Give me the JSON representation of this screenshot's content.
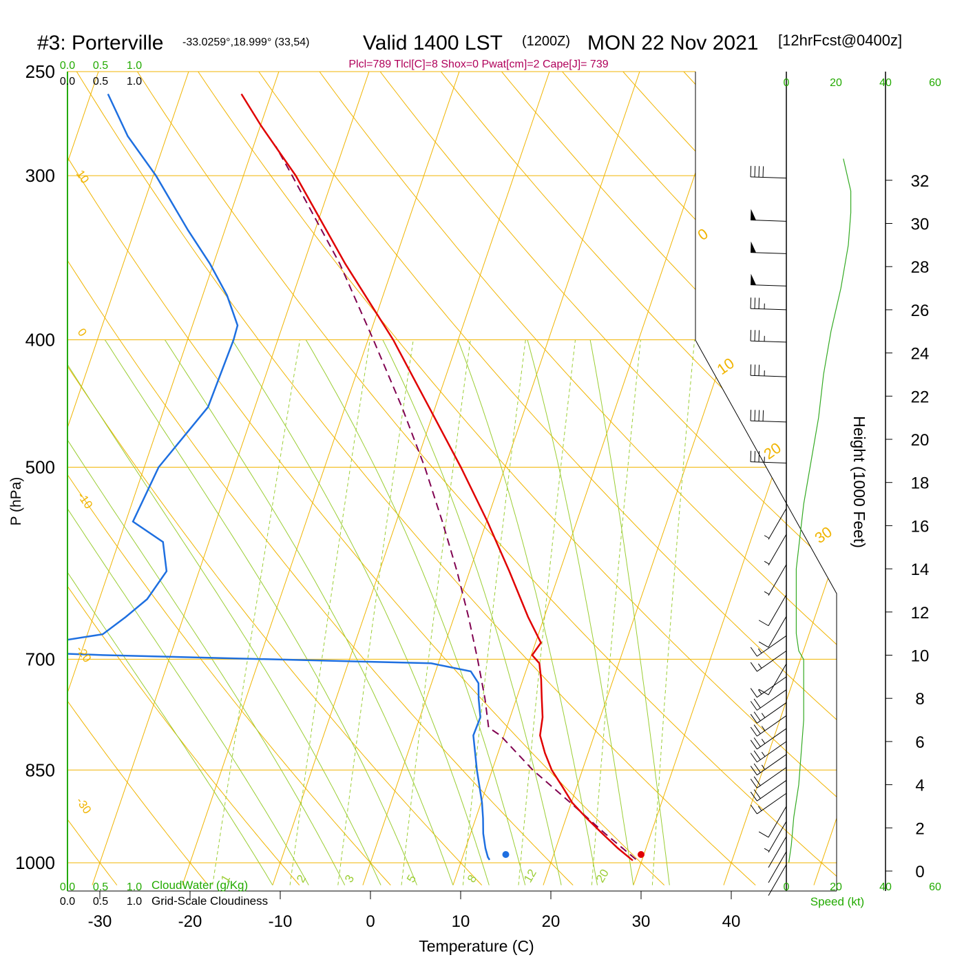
{
  "header": {
    "station": "#3: Porterville",
    "coords": "-33.0259°,18.999° (33,54)",
    "valid": "Valid 1400 LST",
    "utc": "(1200Z)",
    "date": "MON 22 Nov 2021",
    "forecast": "[12hrFcst@0400z]"
  },
  "indices": "Plcl=789 Tlcl[C]=8 Shox=0 Pwat[cm]=2 Cape[J]= 739",
  "colors": {
    "isotherm": "#f0b400",
    "dry_adiabat": "#f0b400",
    "moist_adiabat": "#9acd32",
    "mixing_ratio": "#9acd32",
    "temperature": "#e00000",
    "dewpoint": "#1e6fe0",
    "parcel": "#800050",
    "index_text": "#b0005a",
    "green_text": "#22aa00",
    "height_curve": "#33aa22",
    "wind": "#000000"
  },
  "chart_data": {
    "type": "skew-t sounding",
    "xlabel": "Temperature (C)",
    "ylabel": "P (hPa)",
    "right_axis_label": "Height (1000 Feet)",
    "xlim": [
      -34,
      52
    ],
    "pressure_range": [
      1035,
      250
    ],
    "pressure_ticks": [
      "250",
      "300",
      "400",
      "500",
      "700",
      "850",
      "1000"
    ],
    "temperature_ticks": [
      "-30",
      "-20",
      "-10",
      "0",
      "10",
      "20",
      "30",
      "40"
    ],
    "height_ticks": [
      "0",
      "2",
      "4",
      "6",
      "8",
      "10",
      "12",
      "14",
      "16",
      "18",
      "20",
      "22",
      "24",
      "26",
      "28",
      "30",
      "32"
    ],
    "cloud_ticks": [
      "0.0",
      "0.5",
      "1.0"
    ],
    "cloudwater_label": "CloudWater (g/Kg)",
    "cloudiness_label": "Grid-Scale Cloudiness",
    "speed_ticks": [
      "0",
      "20",
      "40",
      "60"
    ],
    "speed_label": "Speed (kt)",
    "dry_adiabat_labels": [
      "10",
      "0",
      "-10",
      "-20",
      "-30"
    ],
    "moist_adiabat_labels": [
      "0",
      "10",
      "20",
      "30"
    ],
    "mixing_ratio_labels": [
      "1",
      "2",
      "3",
      "5",
      "8",
      "12",
      "20"
    ],
    "temperature_profile": [
      {
        "p": 996,
        "t": 29.0
      },
      {
        "p": 990,
        "t": 28.4
      },
      {
        "p": 975,
        "t": 26.9
      },
      {
        "p": 950,
        "t": 24.6
      },
      {
        "p": 925,
        "t": 22.3
      },
      {
        "p": 900,
        "t": 20.1
      },
      {
        "p": 875,
        "t": 18.4
      },
      {
        "p": 850,
        "t": 16.6
      },
      {
        "p": 825,
        "t": 15.2
      },
      {
        "p": 800,
        "t": 14.0
      },
      {
        "p": 775,
        "t": 13.6
      },
      {
        "p": 750,
        "t": 12.8
      },
      {
        "p": 725,
        "t": 12.0
      },
      {
        "p": 705,
        "t": 11.2
      },
      {
        "p": 695,
        "t": 10.1
      },
      {
        "p": 680,
        "t": 10.6
      },
      {
        "p": 650,
        "t": 8.2
      },
      {
        "p": 600,
        "t": 4.4
      },
      {
        "p": 550,
        "t": 0.1
      },
      {
        "p": 500,
        "t": -4.9
      },
      {
        "p": 450,
        "t": -10.7
      },
      {
        "p": 400,
        "t": -17.2
      },
      {
        "p": 350,
        "t": -25.4
      },
      {
        "p": 300,
        "t": -34.2
      },
      {
        "p": 275,
        "t": -39.9
      },
      {
        "p": 260,
        "t": -43.3
      }
    ],
    "dewpoint_profile": [
      {
        "p": 995,
        "t": 13.1
      },
      {
        "p": 990,
        "t": 12.8
      },
      {
        "p": 975,
        "t": 12.2
      },
      {
        "p": 950,
        "t": 11.4
      },
      {
        "p": 925,
        "t": 10.8
      },
      {
        "p": 900,
        "t": 10.1
      },
      {
        "p": 850,
        "t": 8.3
      },
      {
        "p": 800,
        "t": 6.6
      },
      {
        "p": 775,
        "t": 6.7
      },
      {
        "p": 750,
        "t": 5.8
      },
      {
        "p": 730,
        "t": 5.2
      },
      {
        "p": 715,
        "t": 3.9
      },
      {
        "p": 705,
        "t": -0.8
      },
      {
        "p": 695,
        "t": -37.5
      },
      {
        "p": 690,
        "t": -49.6
      },
      {
        "p": 670,
        "t": -38.3
      },
      {
        "p": 650,
        "t": -36.4
      },
      {
        "p": 630,
        "t": -34.7
      },
      {
        "p": 600,
        "t": -33.6
      },
      {
        "p": 570,
        "t": -35.1
      },
      {
        "p": 550,
        "t": -39.2
      },
      {
        "p": 500,
        "t": -38.4
      },
      {
        "p": 450,
        "t": -35.2
      },
      {
        "p": 400,
        "t": -34.9
      },
      {
        "p": 390,
        "t": -35.0
      },
      {
        "p": 370,
        "t": -37.3
      },
      {
        "p": 350,
        "t": -40.4
      },
      {
        "p": 330,
        "t": -44.1
      },
      {
        "p": 300,
        "t": -49.7
      },
      {
        "p": 280,
        "t": -54.3
      },
      {
        "p": 260,
        "t": -58.1
      }
    ],
    "parcel_profile": [
      {
        "p": 994,
        "t": 29.3
      },
      {
        "p": 950,
        "t": 24.9
      },
      {
        "p": 900,
        "t": 19.9
      },
      {
        "p": 850,
        "t": 14.5
      },
      {
        "p": 800,
        "t": 9.6
      },
      {
        "p": 789,
        "t": 8.0
      },
      {
        "p": 750,
        "t": 6.5
      },
      {
        "p": 700,
        "t": 4.2
      },
      {
        "p": 650,
        "t": 1.6
      },
      {
        "p": 600,
        "t": -1.4
      },
      {
        "p": 550,
        "t": -4.9
      },
      {
        "p": 500,
        "t": -8.9
      },
      {
        "p": 450,
        "t": -13.7
      },
      {
        "p": 400,
        "t": -19.4
      },
      {
        "p": 350,
        "t": -26.0
      },
      {
        "p": 300,
        "t": -34.6
      },
      {
        "p": 285,
        "t": -37.5
      }
    ],
    "surface_temperature": 30,
    "surface_dewpoint": 15,
    "height_profile_kt": [
      {
        "h": 0.4,
        "s": 1
      },
      {
        "h": 1.2,
        "s": 2
      },
      {
        "h": 2.5,
        "s": 3
      },
      {
        "h": 4.0,
        "s": 5
      },
      {
        "h": 5.5,
        "s": 6
      },
      {
        "h": 7.0,
        "s": 7
      },
      {
        "h": 8.5,
        "s": 7
      },
      {
        "h": 9.8,
        "s": 7
      },
      {
        "h": 10.2,
        "s": 5
      },
      {
        "h": 11.0,
        "s": 4
      },
      {
        "h": 12.5,
        "s": 4
      },
      {
        "h": 14.0,
        "s": 4
      },
      {
        "h": 15.0,
        "s": 5
      },
      {
        "h": 17.0,
        "s": 7
      },
      {
        "h": 19.0,
        "s": 10
      },
      {
        "h": 21.0,
        "s": 13
      },
      {
        "h": 23.0,
        "s": 15
      },
      {
        "h": 25.0,
        "s": 18
      },
      {
        "h": 27.0,
        "s": 22
      },
      {
        "h": 29.0,
        "s": 25
      },
      {
        "h": 30.5,
        "s": 26
      },
      {
        "h": 31.5,
        "s": 26
      },
      {
        "h": 32.5,
        "s": 24
      },
      {
        "h": 33.0,
        "s": 23
      }
    ],
    "wind_barbs": [
      {
        "h": 0.3,
        "spd": 2
      },
      {
        "h": 0.9,
        "spd": 3
      },
      {
        "h": 1.6,
        "spd": 4
      },
      {
        "h": 2.3,
        "spd": 5
      },
      {
        "h": 3.0,
        "spd": 10
      },
      {
        "h": 3.6,
        "spd": 15
      },
      {
        "h": 4.2,
        "spd": 20
      },
      {
        "h": 4.8,
        "spd": 20
      },
      {
        "h": 5.4,
        "spd": 25
      },
      {
        "h": 6.0,
        "spd": 25
      },
      {
        "h": 6.6,
        "spd": 25
      },
      {
        "h": 7.2,
        "spd": 25
      },
      {
        "h": 7.8,
        "spd": 25
      },
      {
        "h": 8.4,
        "spd": 20
      },
      {
        "h": 9.0,
        "spd": 15
      },
      {
        "h": 9.6,
        "spd": 10
      },
      {
        "h": 10.2,
        "spd": 15
      },
      {
        "h": 10.9,
        "spd": 15
      },
      {
        "h": 11.8,
        "spd": 10
      },
      {
        "h": 12.8,
        "spd": 10
      },
      {
        "h": 14.2,
        "spd": 5
      },
      {
        "h": 15.6,
        "spd": 5
      },
      {
        "h": 16.8,
        "spd": 5
      },
      {
        "h": 18.9,
        "spd": 35
      },
      {
        "h": 20.8,
        "spd": 40
      },
      {
        "h": 22.9,
        "spd": 35
      },
      {
        "h": 24.5,
        "spd": 35
      },
      {
        "h": 26.0,
        "spd": 35
      },
      {
        "h": 27.1,
        "spd": 50
      },
      {
        "h": 28.6,
        "spd": 50
      },
      {
        "h": 30.1,
        "spd": 50
      },
      {
        "h": 32.1,
        "spd": 40
      }
    ]
  }
}
